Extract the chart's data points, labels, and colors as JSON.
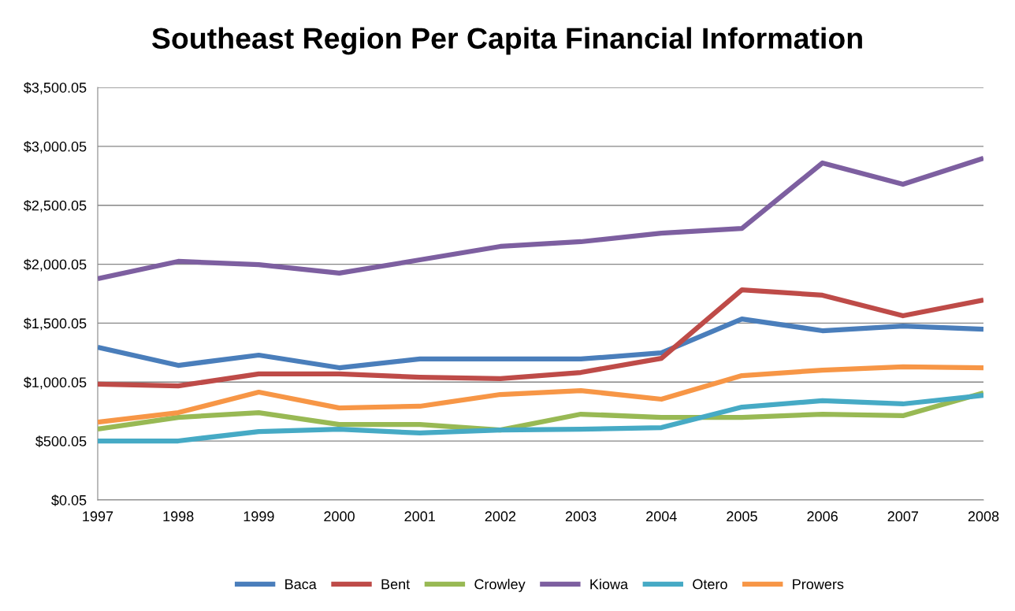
{
  "chart_data": {
    "type": "line",
    "title": "Southeast Region Per Capita Financial Information",
    "categories": [
      "1997",
      "1998",
      "1999",
      "2000",
      "2001",
      "2002",
      "2003",
      "2004",
      "2005",
      "2006",
      "2007",
      "2008"
    ],
    "series": [
      {
        "name": "Baca",
        "color": "#4a7ebb",
        "values": [
          1296,
          1142,
          1229,
          1122,
          1196,
          1196,
          1196,
          1249,
          1536,
          1436,
          1476,
          1449
        ]
      },
      {
        "name": "Bent",
        "color": "#be4b48",
        "values": [
          982,
          968,
          1069,
          1069,
          1042,
          1029,
          1082,
          1202,
          1783,
          1737,
          1563,
          1697
        ]
      },
      {
        "name": "Crowley",
        "color": "#98b954",
        "values": [
          601,
          701,
          741,
          641,
          641,
          594,
          728,
          701,
          701,
          728,
          715,
          908
        ]
      },
      {
        "name": "Kiowa",
        "color": "#7d5fa0",
        "values": [
          1877,
          2024,
          1997,
          1924,
          2037,
          2151,
          2191,
          2264,
          2304,
          2859,
          2678,
          2899
        ]
      },
      {
        "name": "Otero",
        "color": "#46aac5",
        "values": [
          501,
          501,
          581,
          601,
          568,
          594,
          601,
          614,
          788,
          842,
          815,
          888
        ]
      },
      {
        "name": "Prowers",
        "color": "#f79646",
        "values": [
          661,
          741,
          915,
          781,
          795,
          895,
          928,
          855,
          1055,
          1102,
          1129,
          1122
        ]
      }
    ],
    "ylim": [
      0.05,
      3500.05
    ],
    "yticks": [
      {
        "value": 0.05,
        "label": "$0.05"
      },
      {
        "value": 500.05,
        "label": "$500.05"
      },
      {
        "value": 1000.05,
        "label": "$1,000.05"
      },
      {
        "value": 1500.05,
        "label": "$1,500.05"
      },
      {
        "value": 2000.05,
        "label": "$2,000.05"
      },
      {
        "value": 2500.05,
        "label": "$2,500.05"
      },
      {
        "value": 3000.05,
        "label": "$3,000.05"
      },
      {
        "value": 3500.05,
        "label": "$3,500.05"
      }
    ],
    "grid": "y",
    "legend": "bottom",
    "marker": "none",
    "line_style": "solid"
  }
}
